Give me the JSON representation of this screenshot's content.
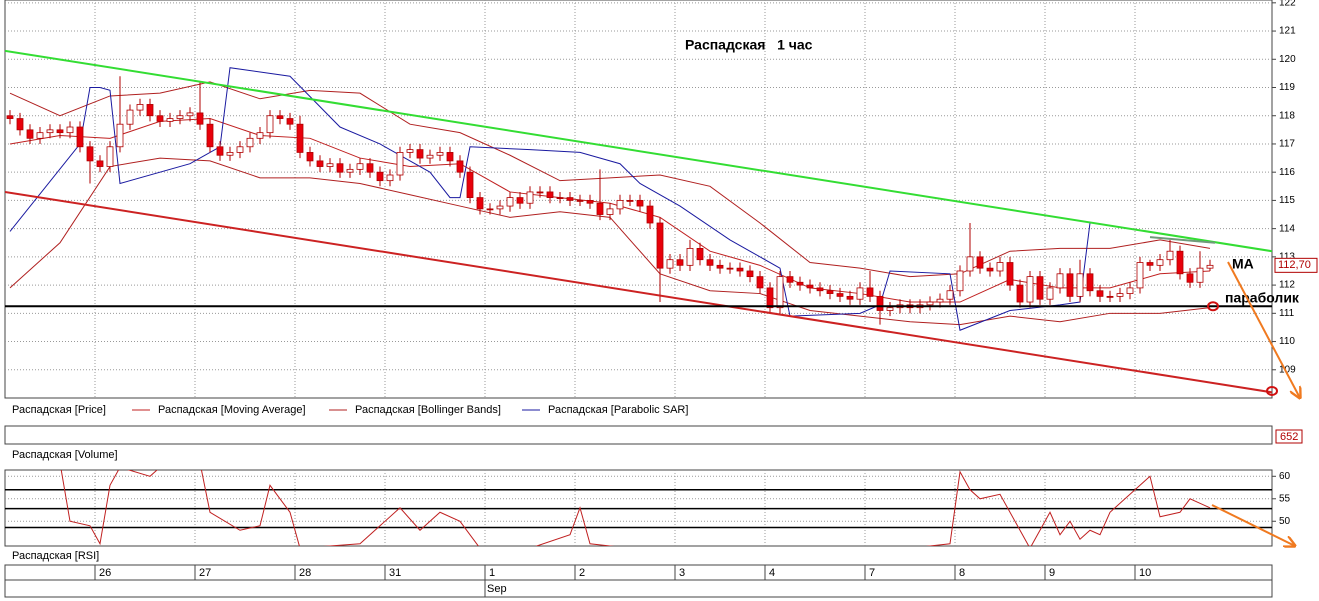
{
  "chart_data": [
    {
      "type": "candlestick",
      "title": "Распадская   1 час",
      "price_name": "Распадская [Price]",
      "xlim": [
        -0.5,
        126.2
      ],
      "ylim": [
        108,
        122.1
      ],
      "yticks": [
        109,
        110,
        111,
        112,
        113,
        114,
        115,
        116,
        117,
        118,
        119,
        120,
        121,
        122
      ],
      "grid": true,
      "up_color": "#ffffff",
      "down_color": "#e8000b",
      "edge_color": "#b00000",
      "open": [
        118.0,
        117.9,
        117.5,
        117.2,
        117.4,
        117.5,
        117.4,
        117.6,
        116.9,
        116.4,
        116.2,
        116.9,
        117.7,
        118.2,
        118.4,
        118.0,
        117.8,
        117.9,
        118.0,
        118.1,
        117.7,
        116.9,
        116.6,
        116.7,
        116.9,
        117.2,
        117.4,
        118.0,
        117.9,
        117.7,
        116.7,
        116.4,
        116.2,
        116.3,
        116.0,
        116.1,
        116.3,
        116.0,
        115.7,
        115.9,
        116.7,
        116.8,
        116.5,
        116.6,
        116.7,
        116.4,
        116.0,
        115.1,
        114.7,
        114.7,
        114.8,
        115.1,
        114.9,
        115.3,
        115.3,
        115.1,
        115.1,
        115.0,
        115.0,
        114.9,
        114.5,
        114.7,
        115.0,
        115.0,
        114.8,
        114.2,
        112.6,
        112.9,
        112.7,
        113.3,
        112.9,
        112.7,
        112.6,
        112.6,
        112.5,
        112.3,
        111.9,
        111.2,
        112.3,
        112.1,
        112.0,
        111.9,
        111.8,
        111.7,
        111.6,
        111.5,
        111.9,
        111.6,
        111.1,
        111.2,
        111.3,
        111.2,
        111.3,
        111.4,
        111.5,
        111.8,
        112.5,
        113.0,
        112.6,
        112.5,
        112.8,
        112.0,
        111.4,
        112.3,
        111.5,
        111.9,
        112.4,
        111.6,
        112.4,
        111.8,
        111.6,
        111.6,
        111.7,
        111.9,
        112.8,
        112.7,
        112.9,
        113.2,
        112.4,
        112.1,
        112.6
      ],
      "high": [
        118.2,
        118.1,
        117.7,
        117.6,
        117.7,
        117.7,
        117.8,
        117.8,
        117.1,
        116.6,
        117.1,
        119.4,
        118.4,
        118.6,
        118.6,
        118.2,
        118.1,
        118.2,
        118.3,
        119.2,
        117.9,
        117.1,
        116.9,
        117.1,
        117.4,
        117.6,
        118.2,
        118.2,
        118.1,
        118.0,
        116.9,
        116.6,
        116.5,
        116.5,
        116.3,
        116.5,
        116.5,
        116.2,
        116.1,
        116.9,
        117.0,
        117.0,
        116.8,
        116.9,
        116.9,
        116.6,
        116.2,
        115.3,
        114.9,
        115.0,
        115.3,
        115.3,
        115.5,
        115.5,
        115.5,
        115.3,
        115.3,
        115.2,
        115.2,
        116.1,
        114.9,
        115.2,
        115.2,
        115.2,
        115.0,
        114.4,
        113.1,
        113.1,
        113.6,
        113.5,
        113.1,
        112.9,
        112.8,
        112.8,
        112.7,
        112.5,
        112.1,
        112.5,
        112.5,
        112.3,
        112.2,
        112.1,
        112.0,
        111.9,
        111.8,
        112.1,
        112.5,
        111.8,
        111.4,
        111.5,
        111.5,
        111.5,
        111.6,
        111.7,
        112.0,
        112.7,
        114.2,
        113.2,
        112.8,
        113.0,
        113.0,
        112.2,
        112.5,
        112.5,
        112.1,
        112.6,
        112.6,
        112.9,
        112.6,
        112.0,
        111.8,
        111.9,
        112.1,
        113.0,
        112.9,
        113.1,
        113.6,
        113.4,
        112.6,
        113.2,
        112.9
      ],
      "low": [
        117.7,
        117.3,
        117.0,
        117.0,
        117.2,
        117.2,
        117.2,
        116.7,
        115.6,
        116.0,
        116.0,
        116.7,
        117.5,
        118.0,
        117.8,
        117.6,
        117.6,
        117.7,
        117.8,
        117.5,
        116.7,
        116.4,
        116.4,
        116.5,
        116.7,
        117.0,
        117.2,
        117.7,
        117.5,
        116.5,
        116.2,
        116.0,
        116.0,
        115.8,
        115.8,
        115.9,
        115.8,
        115.5,
        115.5,
        115.7,
        116.5,
        116.3,
        116.3,
        116.4,
        116.2,
        115.8,
        114.9,
        114.5,
        114.5,
        114.5,
        114.6,
        114.7,
        114.7,
        115.1,
        114.9,
        114.9,
        114.8,
        114.8,
        114.7,
        114.3,
        114.3,
        114.5,
        114.8,
        114.6,
        114.0,
        111.4,
        112.4,
        112.5,
        112.5,
        112.7,
        112.5,
        112.4,
        112.4,
        112.3,
        112.1,
        111.7,
        111.0,
        111.0,
        111.9,
        111.8,
        111.7,
        111.6,
        111.5,
        111.4,
        111.3,
        111.3,
        111.4,
        110.6,
        110.9,
        111.0,
        111.0,
        111.0,
        111.1,
        111.2,
        111.3,
        111.6,
        112.3,
        112.4,
        112.3,
        112.3,
        111.8,
        111.2,
        111.2,
        111.3,
        111.3,
        111.7,
        111.4,
        111.4,
        111.6,
        111.4,
        111.4,
        111.4,
        111.5,
        111.7,
        112.5,
        112.5,
        112.7,
        112.2,
        111.9,
        111.9,
        112.5
      ],
      "close": [
        117.9,
        117.5,
        117.2,
        117.4,
        117.5,
        117.4,
        117.6,
        116.9,
        116.4,
        116.2,
        116.9,
        117.7,
        118.2,
        118.4,
        118.0,
        117.8,
        117.9,
        118.0,
        118.1,
        117.7,
        116.9,
        116.6,
        116.7,
        116.9,
        117.2,
        117.4,
        118.0,
        117.9,
        117.7,
        116.7,
        116.4,
        116.2,
        116.3,
        116.0,
        116.1,
        116.3,
        116.0,
        115.7,
        115.9,
        116.7,
        116.8,
        116.5,
        116.6,
        116.7,
        116.4,
        116.0,
        115.1,
        114.7,
        114.7,
        114.8,
        115.1,
        114.9,
        115.3,
        115.3,
        115.1,
        115.1,
        115.0,
        115.0,
        114.9,
        114.5,
        114.7,
        115.0,
        115.0,
        114.8,
        114.2,
        112.6,
        112.9,
        112.7,
        113.3,
        112.9,
        112.7,
        112.6,
        112.6,
        112.5,
        112.3,
        111.9,
        111.2,
        112.3,
        112.1,
        112.0,
        111.9,
        111.8,
        111.7,
        111.6,
        111.5,
        111.9,
        111.6,
        111.1,
        111.2,
        111.3,
        111.2,
        111.3,
        111.4,
        111.5,
        111.8,
        112.5,
        113.0,
        112.6,
        112.5,
        112.8,
        112.0,
        111.4,
        112.3,
        111.5,
        111.9,
        112.4,
        111.6,
        112.4,
        111.8,
        111.6,
        111.6,
        111.7,
        111.9,
        112.8,
        112.7,
        112.9,
        113.2,
        112.4,
        112.1,
        112.6,
        112.7
      ],
      "series": [
        {
          "name": "Распадская [Moving Average]",
          "color": "#c02020",
          "x": [
            0,
            5,
            10,
            15,
            20,
            25,
            30,
            35,
            40,
            45,
            50,
            55,
            60,
            65,
            70,
            75,
            80,
            85,
            90,
            95,
            100,
            105,
            110,
            115,
            120
          ],
          "values": [
            117.0,
            117.3,
            117.2,
            117.8,
            117.9,
            117.3,
            117.2,
            116.5,
            116.2,
            116.3,
            115.3,
            115.1,
            114.9,
            114.4,
            113.2,
            112.7,
            111.9,
            111.7,
            111.4,
            111.4,
            112.2,
            111.9,
            111.9,
            112.4,
            112.5
          ]
        },
        {
          "name": "Распадская [Bollinger Bands]",
          "color": "#b02020",
          "x": [
            0,
            5,
            10,
            15,
            20,
            25,
            30,
            35,
            40,
            45,
            50,
            55,
            60,
            65,
            70,
            75,
            80,
            85,
            90,
            95,
            100,
            105,
            110,
            115,
            120
          ],
          "values": [
            118.8,
            118.0,
            118.7,
            118.8,
            119.2,
            118.6,
            118.9,
            118.8,
            117.7,
            117.4,
            116.6,
            115.7,
            115.8,
            115.9,
            115.5,
            114.2,
            112.8,
            112.6,
            112.3,
            112.4,
            113.2,
            113.3,
            113.3,
            113.6,
            113.3
          ],
          "lower_values": [
            111.9,
            113.5,
            116.2,
            116.5,
            116.4,
            115.8,
            115.8,
            115.6,
            115.2,
            114.8,
            114.4,
            114.6,
            114.4,
            112.4,
            111.8,
            111.7,
            111.1,
            110.9,
            110.7,
            110.6,
            110.9,
            110.7,
            111.0,
            111.0,
            111.2
          ]
        },
        {
          "name": "Распадская [Parabolic SAR]",
          "color": "#1a1aa0",
          "x": [
            0,
            7,
            8,
            9,
            10,
            11,
            18,
            21,
            22,
            28,
            33,
            37,
            42,
            44,
            45,
            46,
            52,
            57,
            61,
            63,
            67,
            72,
            77,
            78,
            85,
            87,
            88,
            94,
            95,
            100,
            105,
            107,
            108
          ],
          "values": [
            113.9,
            117.0,
            119.0,
            119.0,
            118.9,
            115.6,
            116.3,
            116.9,
            119.7,
            119.4,
            117.6,
            117.0,
            116.0,
            115.1,
            115.1,
            116.9,
            116.8,
            116.7,
            116.3,
            115.6,
            114.8,
            113.6,
            112.6,
            110.9,
            111.0,
            111.3,
            112.5,
            112.4,
            110.4,
            111.1,
            111.3,
            111.4,
            114.2
          ]
        }
      ],
      "trendlines": [
        {
          "color": "#33dd33",
          "x": [
            -0.5,
            126.2
          ],
          "values": [
            120.3,
            113.2
          ]
        },
        {
          "color": "#cc2222",
          "x": [
            -0.5,
            126.2
          ],
          "values": [
            115.3,
            108.2
          ]
        },
        {
          "color": "#000000",
          "x": [
            -0.5,
            126.2
          ],
          "values": [
            111.25,
            111.25
          ]
        },
        {
          "color": "#6f9a7a",
          "x": [
            114,
            120.5
          ],
          "values": [
            113.7,
            113.5
          ]
        }
      ],
      "markers": [
        {
          "x": 120.3,
          "value": 111.25
        },
        {
          "x": 126.2,
          "value": 108.25
        }
      ],
      "marker_color": "#d01010",
      "last_price": 112.7,
      "last_price_label": "112,70",
      "annotations": [
        "МА",
        "параболик"
      ],
      "days": [
        "26",
        "27",
        "28",
        "31",
        "1",
        "2",
        "3",
        "4",
        "7",
        "8",
        "9",
        "10"
      ],
      "day_index": [
        9,
        19,
        29,
        38,
        48,
        57,
        67,
        76,
        86,
        95,
        104,
        113
      ],
      "month": "Sep",
      "month_index": 48
    },
    {
      "type": "volume",
      "name": "Распадская [Volume]",
      "last_label": "652"
    },
    {
      "type": "line",
      "name": "Распадская [RSI]",
      "color": "#c02020",
      "ylim": [
        44.5,
        61.4
      ],
      "yticks": [
        50,
        55,
        60
      ],
      "levels": [
        57.0,
        52.8,
        48.6
      ],
      "x": [
        5,
        6,
        8,
        9,
        10,
        11,
        14,
        15,
        18,
        19,
        20,
        23,
        25,
        26,
        27,
        28,
        29,
        35,
        39,
        41,
        43,
        45,
        47,
        52,
        56,
        57,
        58,
        62,
        66,
        68,
        75,
        90,
        94,
        95,
        96,
        97,
        99,
        101,
        102,
        104,
        105,
        106,
        107,
        108,
        109,
        110,
        111,
        112,
        113,
        114,
        115,
        117,
        118,
        119,
        120
      ],
      "values": [
        63,
        50,
        49,
        45,
        58,
        62,
        60,
        62,
        62,
        63,
        52,
        48,
        49,
        58,
        55,
        52,
        44,
        45,
        53,
        48,
        52,
        50,
        44,
        44,
        47,
        53,
        45,
        44,
        44,
        44,
        44,
        44,
        45,
        61,
        57,
        55,
        56,
        48,
        44,
        52,
        47,
        50,
        46,
        48,
        47,
        52,
        54,
        56,
        58,
        60,
        51,
        52,
        55,
        54,
        53
      ]
    }
  ]
}
